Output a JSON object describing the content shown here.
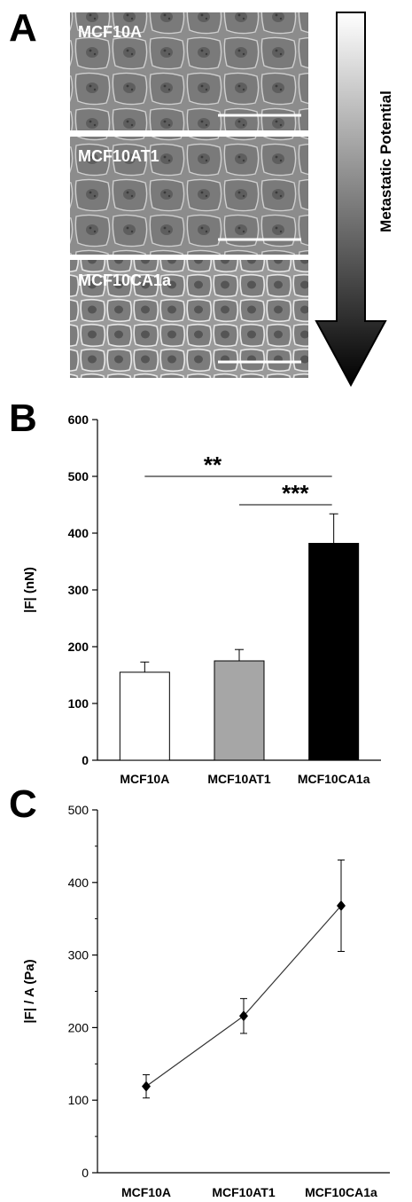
{
  "panel_labels": {
    "a": "A",
    "b": "B",
    "c": "C"
  },
  "micrographs": [
    {
      "label": "MCF10A"
    },
    {
      "label": "MCF10AT1"
    },
    {
      "label": "MCF10CA1a"
    }
  ],
  "gradient_arrow": {
    "label": "Metastatic Potential",
    "from_color": "#ffffff",
    "to_color": "#000000"
  },
  "chart_data": [
    {
      "type": "bar",
      "categories": [
        "MCF10A",
        "MCF10AT1",
        "MCF10CA1a"
      ],
      "values": [
        155,
        175,
        382
      ],
      "errors": [
        18,
        20,
        52
      ],
      "bar_colors": [
        "#ffffff",
        "#a6a6a6",
        "#000000"
      ],
      "ylabel": "|F| (nN)",
      "ylim": [
        0,
        600
      ],
      "yticks": [
        0,
        100,
        200,
        300,
        400,
        500,
        600
      ],
      "significance": [
        {
          "from": "MCF10A",
          "to": "MCF10CA1a",
          "label": "**"
        },
        {
          "from": "MCF10AT1",
          "to": "MCF10CA1a",
          "label": "***"
        }
      ],
      "grid": false
    },
    {
      "type": "line",
      "categories": [
        "MCF10A",
        "MCF10AT1",
        "MCF10CA1a"
      ],
      "values": [
        119,
        216,
        368
      ],
      "errors": [
        16,
        24,
        63
      ],
      "ylabel": "|F| / A (Pa)",
      "ylim": [
        0,
        500
      ],
      "yticks": [
        0,
        100,
        200,
        300,
        400,
        500
      ],
      "marker": "diamond",
      "grid": false
    }
  ]
}
